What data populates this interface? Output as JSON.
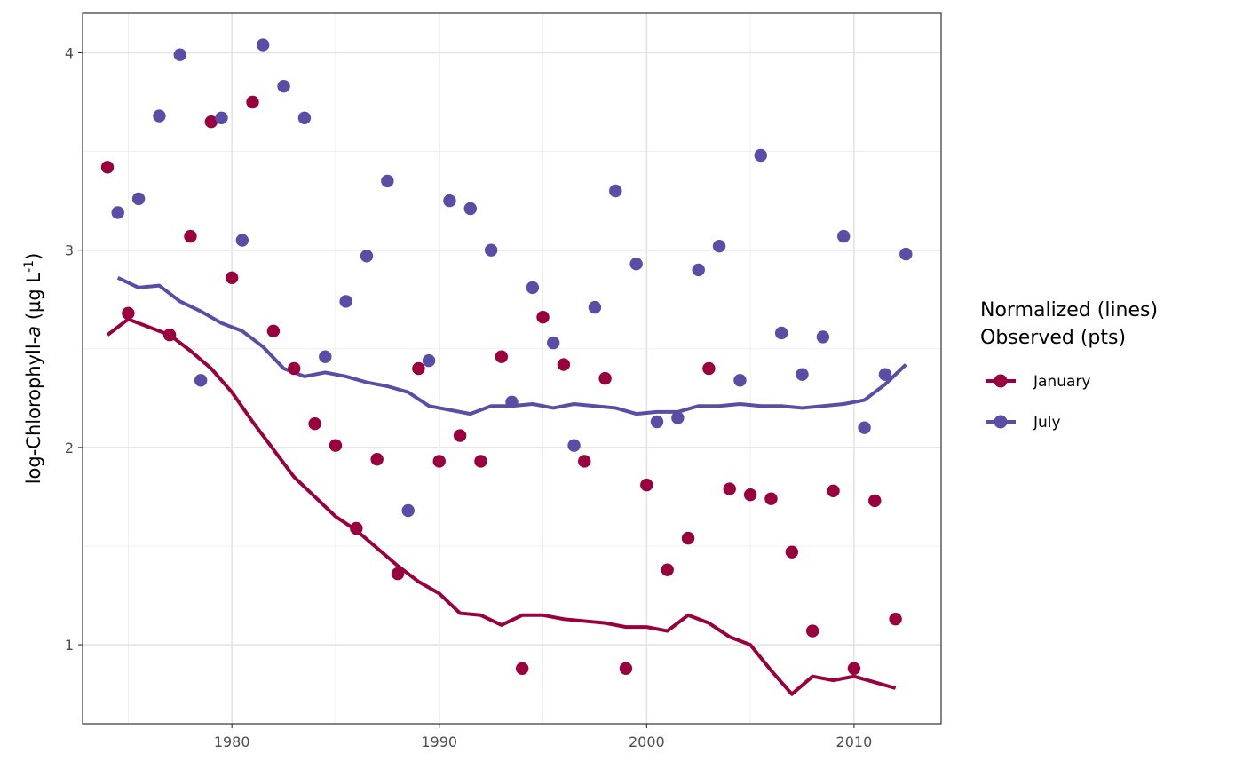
{
  "chart_data": {
    "type": "line",
    "title": "",
    "xlabel": "",
    "ylabel": {
      "prefix": "log-Chlorophyll-",
      "italic": "a",
      "unit_open": " (µg L",
      "unit_sup": "-1",
      "unit_close": ")"
    },
    "xlim": [
      1972.8,
      2014.2
    ],
    "ylim": [
      0.6,
      4.2
    ],
    "x_ticks": [
      1980,
      1990,
      2000,
      2010
    ],
    "x_tick_labels": [
      "1980",
      "1990",
      "2000",
      "2010"
    ],
    "y_ticks": [
      1,
      2,
      3,
      4
    ],
    "y_tick_labels": [
      "1",
      "2",
      "3",
      "4"
    ],
    "grid": true,
    "legend": {
      "position": "right",
      "title_lines": [
        "Normalized (lines)",
        "Observed (pts)"
      ]
    },
    "series": [
      {
        "name": "January",
        "color": "#99003D",
        "line": {
          "x": [
            1974,
            1975,
            1976,
            1977,
            1978,
            1979,
            1980,
            1981,
            1982,
            1983,
            1984,
            1985,
            1986,
            1987,
            1988,
            1989,
            1990,
            1991,
            1992,
            1993,
            1994,
            1995,
            1996,
            1997,
            1998,
            1999,
            2000,
            2001,
            2002,
            2003,
            2004,
            2005,
            2006,
            2007,
            2008,
            2009,
            2010,
            2011,
            2012
          ],
          "y": [
            2.57,
            2.65,
            2.61,
            2.57,
            2.49,
            2.4,
            2.28,
            2.13,
            1.99,
            1.85,
            1.75,
            1.65,
            1.58,
            1.49,
            1.4,
            1.32,
            1.26,
            1.16,
            1.15,
            1.1,
            1.15,
            1.15,
            1.13,
            1.12,
            1.11,
            1.09,
            1.09,
            1.07,
            1.15,
            1.11,
            1.04,
            1.0,
            0.87,
            0.75,
            0.84,
            0.82,
            0.84,
            0.81,
            0.78
          ]
        },
        "points": {
          "x": [
            1974,
            1975,
            1977,
            1978,
            1979,
            1980,
            1981,
            1982,
            1983,
            1984,
            1985,
            1986,
            1987,
            1988,
            1989,
            1990,
            1991,
            1992,
            1993,
            1994,
            1995,
            1996,
            1997,
            1998,
            1999,
            2000,
            2001,
            2002,
            2003,
            2004,
            2005,
            2006,
            2007,
            2008,
            2009,
            2010,
            2011,
            2012
          ],
          "y": [
            3.42,
            2.68,
            2.57,
            3.07,
            3.65,
            2.86,
            3.75,
            2.59,
            2.4,
            2.12,
            2.01,
            1.59,
            1.94,
            1.36,
            2.4,
            1.93,
            2.06,
            1.93,
            2.46,
            0.88,
            2.66,
            2.42,
            1.93,
            2.35,
            0.88,
            1.81,
            1.38,
            1.54,
            2.4,
            1.79,
            1.76,
            1.74,
            1.47,
            1.07,
            1.78,
            0.88,
            1.73,
            1.13
          ]
        }
      },
      {
        "name": "July",
        "color": "#5A4DA6",
        "line": {
          "x": [
            1974.5,
            1975.5,
            1976.5,
            1977.5,
            1978.5,
            1979.5,
            1980.5,
            1981.5,
            1982.5,
            1983.5,
            1984.5,
            1985.5,
            1986.5,
            1987.5,
            1988.5,
            1989.5,
            1990.5,
            1991.5,
            1992.5,
            1993.5,
            1994.5,
            1995.5,
            1996.5,
            1997.5,
            1998.5,
            1999.5,
            2000.5,
            2001.5,
            2002.5,
            2003.5,
            2004.5,
            2005.5,
            2006.5,
            2007.5,
            2008.5,
            2009.5,
            2010.5,
            2011.5,
            2012.5
          ],
          "y": [
            2.86,
            2.81,
            2.82,
            2.74,
            2.69,
            2.63,
            2.59,
            2.51,
            2.4,
            2.36,
            2.38,
            2.36,
            2.33,
            2.31,
            2.28,
            2.21,
            2.19,
            2.17,
            2.21,
            2.21,
            2.22,
            2.2,
            2.22,
            2.21,
            2.2,
            2.17,
            2.18,
            2.18,
            2.21,
            2.21,
            2.22,
            2.21,
            2.21,
            2.2,
            2.21,
            2.22,
            2.24,
            2.32,
            2.42
          ]
        },
        "points": {
          "x": [
            1974.5,
            1975.5,
            1976.5,
            1977.5,
            1978.5,
            1979.5,
            1980.5,
            1981.5,
            1982.5,
            1983.5,
            1984.5,
            1985.5,
            1986.5,
            1987.5,
            1988.5,
            1989.5,
            1990.5,
            1991.5,
            1992.5,
            1993.5,
            1994.5,
            1995.5,
            1996.5,
            1997.5,
            1998.5,
            1999.5,
            2000.5,
            2001.5,
            2002.5,
            2003.5,
            2004.5,
            2005.5,
            2006.5,
            2007.5,
            2008.5,
            2009.5,
            2010.5,
            2011.5,
            2012.5
          ],
          "y": [
            3.19,
            3.26,
            3.68,
            3.99,
            2.34,
            3.67,
            3.05,
            4.04,
            3.83,
            3.67,
            2.46,
            2.74,
            2.97,
            3.35,
            1.68,
            2.44,
            3.25,
            3.21,
            3.0,
            2.23,
            2.81,
            2.53,
            2.01,
            2.71,
            3.3,
            2.93,
            2.13,
            2.15,
            2.9,
            3.02,
            2.34,
            3.48,
            2.58,
            2.37,
            2.56,
            3.07,
            2.1,
            2.37,
            2.98
          ]
        }
      }
    ]
  }
}
